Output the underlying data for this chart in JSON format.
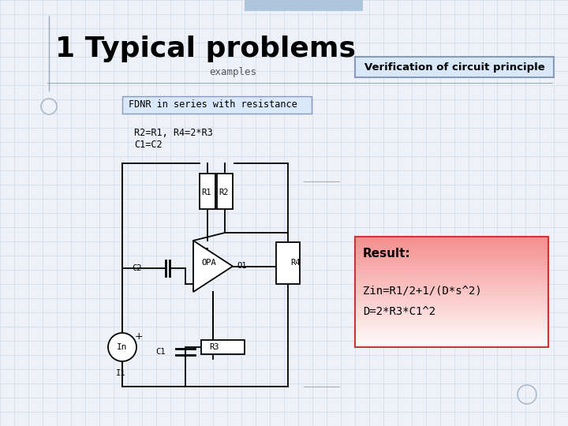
{
  "title": "1 Typical problems",
  "subtitle": "examples",
  "verification_label": "Verification of circuit principle",
  "fdnr_label": "FDNR in series with resistance",
  "conditions_line1": "R2=R1, R4=2*R3",
  "conditions_line2": "C1=C2",
  "result_title": "Result:",
  "result_line1": "Zin=R1/2+1/(D*s^2)",
  "result_line2": "D=2*R3*C1^2",
  "bg_grid_color": "#c8d4e8",
  "slide_bg": "#eef2f8",
  "title_color": "#000000",
  "verification_box_bg": "#d8e8f8",
  "verification_box_border": "#8899bb",
  "fdnr_box_bg": "#d8e8f8",
  "fdnr_box_border": "#8899bb",
  "result_box_border": "#cc3333",
  "circuit_color": "#000000",
  "top_bar_color": "#adc6dc",
  "accent_line_color": "#99aabb",
  "deco_circle_color": "#99aabb"
}
